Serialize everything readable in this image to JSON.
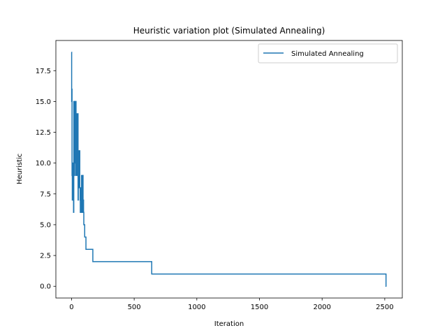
{
  "chart_data": {
    "type": "line",
    "title": "Heuristic variation plot (Simulated Annealing)",
    "xlabel": "Iteration",
    "ylabel": "Heuristic",
    "xlim": [
      -125,
      2640
    ],
    "ylim": [
      -0.95,
      19.95
    ],
    "xticks": [
      0,
      500,
      1000,
      1500,
      2000,
      2500
    ],
    "xtick_labels": [
      "0",
      "500",
      "1000",
      "1500",
      "2000",
      "2500"
    ],
    "yticks": [
      0.0,
      2.5,
      5.0,
      7.5,
      10.0,
      12.5,
      15.0,
      17.5
    ],
    "ytick_labels": [
      "0.0",
      "2.5",
      "5.0",
      "7.5",
      "10.0",
      "12.5",
      "15.0",
      "17.5"
    ],
    "grid": false,
    "legend_position": "upper right",
    "series": [
      {
        "name": "Simulated Annealing",
        "color": "#1f77b4",
        "step": "post",
        "x": [
          0,
          1,
          3,
          4,
          6,
          8,
          10,
          12,
          14,
          16,
          18,
          20,
          22,
          24,
          26,
          28,
          30,
          32,
          34,
          36,
          38,
          40,
          42,
          44,
          46,
          48,
          50,
          52,
          54,
          56,
          58,
          60,
          62,
          64,
          66,
          68,
          70,
          72,
          74,
          76,
          78,
          80,
          82,
          84,
          86,
          88,
          90,
          92,
          94,
          96,
          98,
          100,
          102,
          105,
          110,
          115,
          120,
          125,
          130,
          170,
          640,
          2510,
          2513
        ],
        "y": [
          19,
          15,
          16,
          9,
          7,
          10,
          9,
          8,
          7,
          6,
          15,
          9,
          14,
          12,
          15,
          10,
          15,
          9,
          15,
          10,
          14,
          12,
          9,
          14,
          10,
          13,
          14,
          7,
          8,
          9,
          11,
          8,
          9,
          11,
          8,
          7,
          6,
          7,
          8,
          6,
          7,
          9,
          6,
          7,
          6,
          8,
          9,
          6,
          7,
          6,
          5,
          5,
          5,
          4,
          4,
          3,
          3,
          3,
          3,
          2,
          1,
          0,
          0
        ]
      }
    ]
  }
}
